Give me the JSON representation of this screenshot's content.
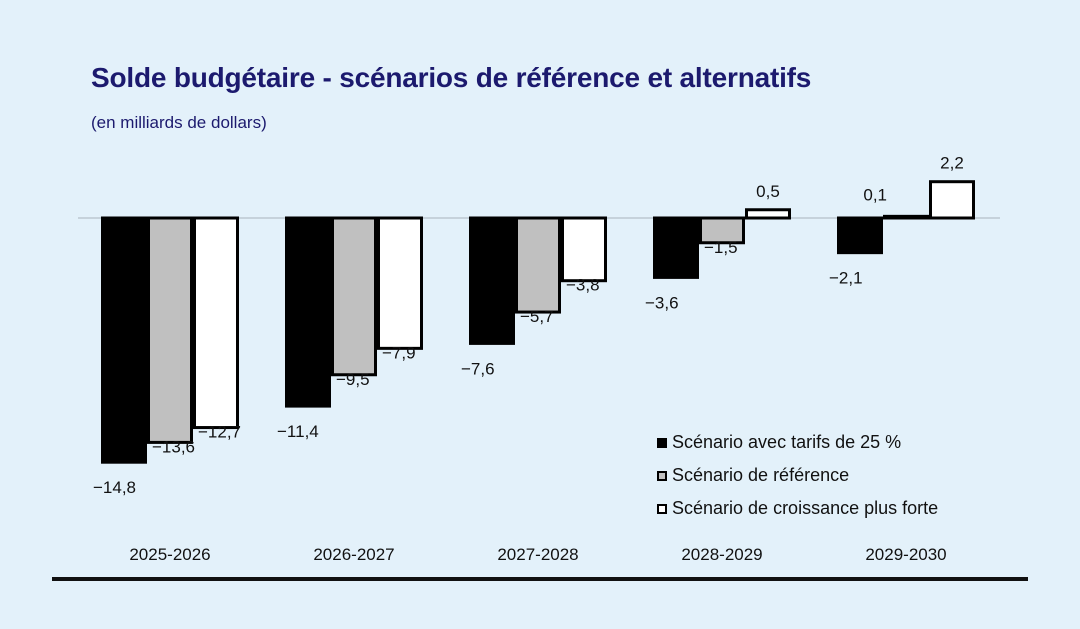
{
  "title": "Solde budgétaire - scénarios de référence et alternatifs",
  "subtitle": "(en milliards de dollars)",
  "chart_data": {
    "type": "bar",
    "title": "Solde budgétaire - scénarios de référence et alternatifs",
    "subtitle": "(en milliards de dollars)",
    "categories": [
      "2025-2026",
      "2026-2027",
      "2027-2028",
      "2028-2029",
      "2029-2030"
    ],
    "series": [
      {
        "name": "Scénario avec tarifs de 25 %",
        "values": [
          -14.8,
          -11.4,
          -7.6,
          -3.6,
          -2.1
        ],
        "labels": [
          "−14,8",
          "−11,4",
          "−7,6",
          "−3,6",
          "−2,1"
        ],
        "color": "#000000"
      },
      {
        "name": "Scénario de référence",
        "values": [
          -13.6,
          -9.5,
          -5.7,
          -1.5,
          0.1
        ],
        "labels": [
          "−13,6",
          "−9,5",
          "−5,7",
          "−1,5",
          "0,1"
        ],
        "color": "#c0c0c0"
      },
      {
        "name": "Scénario de croissance plus forte",
        "values": [
          -12.7,
          -7.9,
          -3.8,
          0.5,
          2.2
        ],
        "labels": [
          "−12,7",
          "−7,9",
          "−3,8",
          "0,5",
          "2,2"
        ],
        "color": "#ffffff"
      }
    ],
    "ylim": [
      -15,
      3
    ],
    "grid": false,
    "legend_position": "bottom-right"
  },
  "legend": [
    {
      "label": "Scénario avec tarifs de 25 %",
      "style": "solid-black"
    },
    {
      "label": "Scénario de référence",
      "style": "grey-outlined"
    },
    {
      "label": "Scénario de croissance plus forte",
      "style": "white-outlined"
    }
  ],
  "colors": {
    "background": "#e3f1fa",
    "title": "#1c1a6e",
    "zero_line": "#a8b4bc"
  }
}
